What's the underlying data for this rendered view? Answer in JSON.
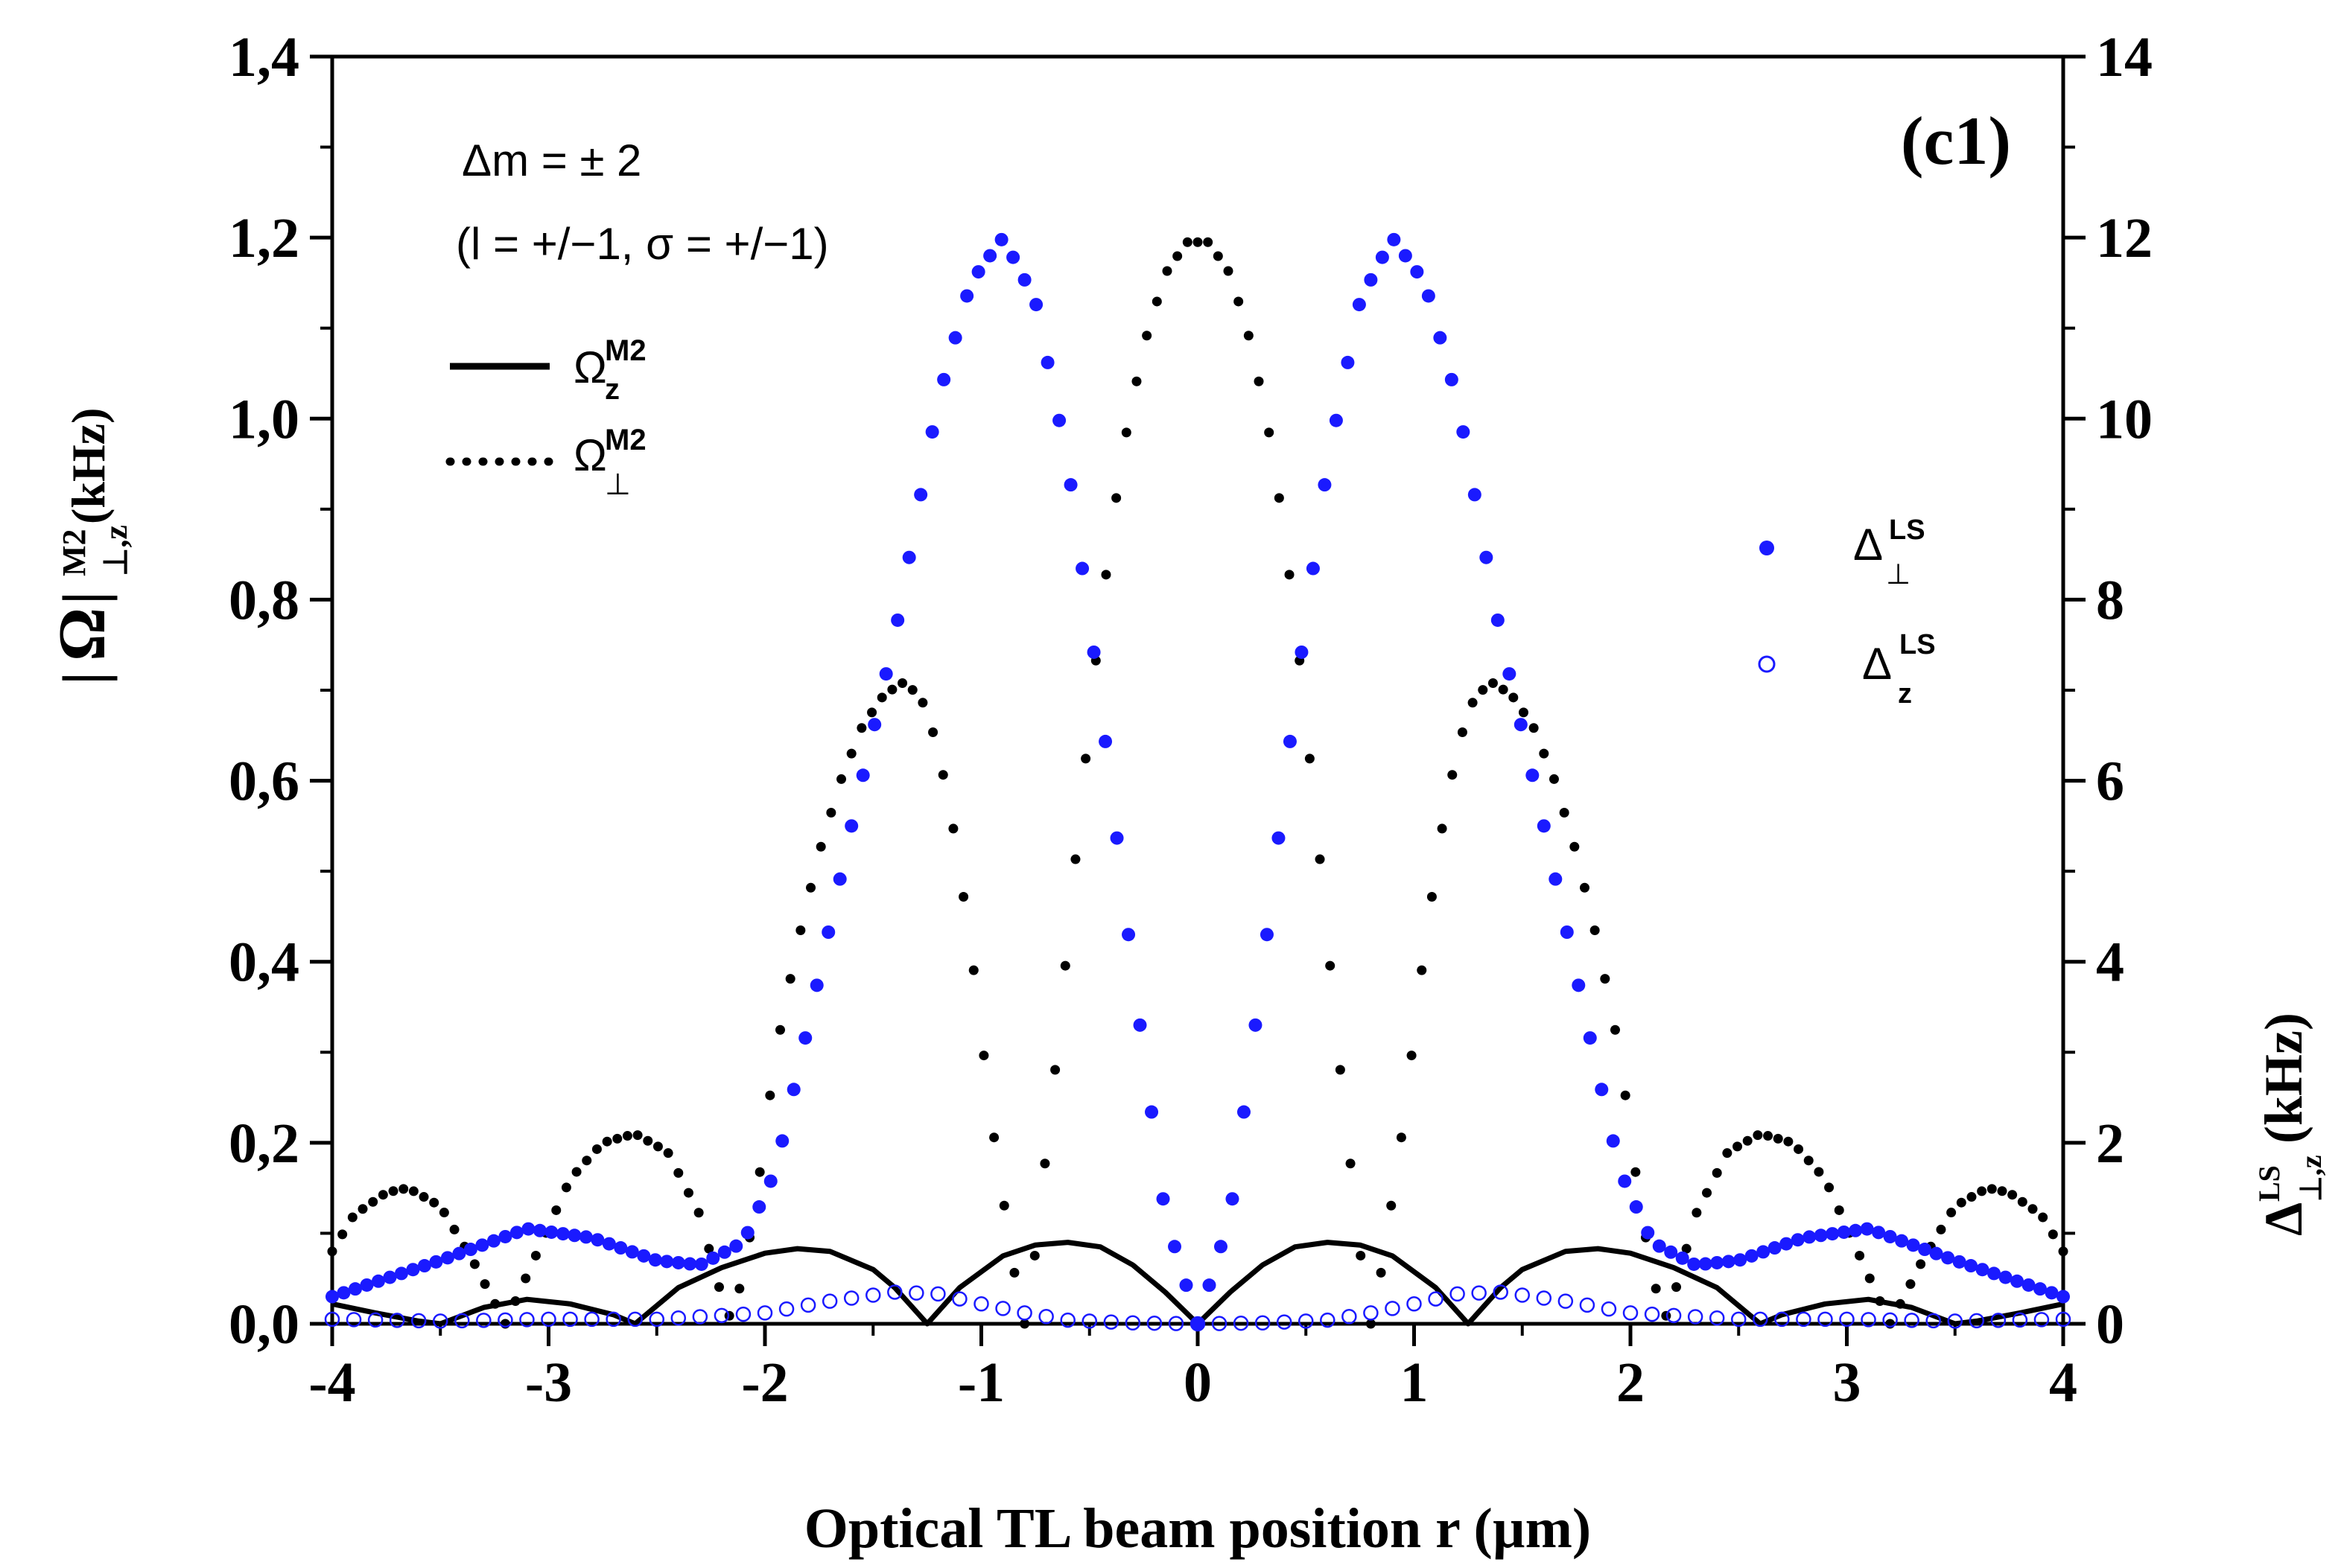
{
  "chart_data": {
    "type": "line",
    "panel_label": "(c1)",
    "annotation": {
      "line1": "Δm = ± 2",
      "line2": "(l = +/−1, σ = +/−1)"
    },
    "xlabel": "Optical TL beam position r (µm)",
    "ylabel_left": {
      "symbol": "Ω",
      "sup": "M2",
      "sub": "⊥,z",
      "unit": "(kHz)"
    },
    "ylabel_right": {
      "symbol": "Δ",
      "sup": "LS",
      "sub": "⊥,z",
      "unit": "(kHz)"
    },
    "xlim": [
      -4,
      4
    ],
    "ylim_left": [
      0,
      1.4
    ],
    "ylim_right": [
      0,
      14
    ],
    "x_ticks": [
      "-4",
      "-3",
      "-2",
      "-1",
      "0",
      "1",
      "2",
      "3",
      "4"
    ],
    "y_left_ticks": [
      "0,0",
      "0,2",
      "0,4",
      "0,6",
      "0,8",
      "1,0",
      "1,2",
      "1,4"
    ],
    "y_right_ticks": [
      "0",
      "2",
      "4",
      "6",
      "8",
      "10",
      "12",
      "14"
    ],
    "legend_left": [
      {
        "symbol": "Ω",
        "sup": "M2",
        "sub": "z",
        "style": "solid"
      },
      {
        "symbol": "Ω",
        "sup": "M2",
        "sub": "⊥",
        "style": "dotted"
      }
    ],
    "legend_right": [
      {
        "symbol": "Δ",
        "sup": "LS",
        "sub": "⊥",
        "style": "filled-circle"
      },
      {
        "symbol": "Δ",
        "sup": "LS",
        "sub": "z",
        "style": "open-circle"
      }
    ],
    "series": [
      {
        "id": "omega_z",
        "axis": "left",
        "style": "solid",
        "color": "#000000",
        "points": [
          [
            -4,
            0.022
          ],
          [
            -3.8,
            0.012
          ],
          [
            -3.6,
            0.003
          ],
          [
            -3.5,
            0.0
          ],
          [
            -3.3,
            0.018
          ],
          [
            -3.1,
            0.027
          ],
          [
            -2.9,
            0.022
          ],
          [
            -2.7,
            0.01
          ],
          [
            -2.6,
            0.0
          ],
          [
            -2.4,
            0.04
          ],
          [
            -2.2,
            0.062
          ],
          [
            -2.0,
            0.078
          ],
          [
            -1.85,
            0.083
          ],
          [
            -1.7,
            0.08
          ],
          [
            -1.5,
            0.06
          ],
          [
            -1.4,
            0.04
          ],
          [
            -1.25,
            0.0
          ],
          [
            -1.1,
            0.04
          ],
          [
            -0.9,
            0.075
          ],
          [
            -0.75,
            0.087
          ],
          [
            -0.6,
            0.09
          ],
          [
            -0.45,
            0.085
          ],
          [
            -0.3,
            0.065
          ],
          [
            -0.15,
            0.035
          ],
          [
            0,
            0.0
          ],
          [
            0.15,
            0.035
          ],
          [
            0.3,
            0.065
          ],
          [
            0.45,
            0.085
          ],
          [
            0.6,
            0.09
          ],
          [
            0.75,
            0.087
          ],
          [
            0.9,
            0.075
          ],
          [
            1.1,
            0.04
          ],
          [
            1.25,
            0.0
          ],
          [
            1.4,
            0.04
          ],
          [
            1.5,
            0.06
          ],
          [
            1.7,
            0.08
          ],
          [
            1.85,
            0.083
          ],
          [
            2.0,
            0.078
          ],
          [
            2.2,
            0.062
          ],
          [
            2.4,
            0.04
          ],
          [
            2.6,
            0.0
          ],
          [
            2.7,
            0.01
          ],
          [
            2.9,
            0.022
          ],
          [
            3.1,
            0.027
          ],
          [
            3.3,
            0.018
          ],
          [
            3.5,
            0.0
          ],
          [
            3.6,
            0.003
          ],
          [
            3.8,
            0.012
          ],
          [
            4,
            0.022
          ]
        ]
      },
      {
        "id": "omega_perp",
        "axis": "left",
        "style": "dotted",
        "color": "#000000",
        "points": [
          [
            -4,
            0.08
          ],
          [
            -3.9,
            0.12
          ],
          [
            -3.75,
            0.145
          ],
          [
            -3.65,
            0.15
          ],
          [
            -3.5,
            0.13
          ],
          [
            -3.35,
            0.07
          ],
          [
            -3.2,
            0.0
          ],
          [
            -3.05,
            0.08
          ],
          [
            -2.9,
            0.16
          ],
          [
            -2.75,
            0.2
          ],
          [
            -2.6,
            0.21
          ],
          [
            -2.45,
            0.19
          ],
          [
            -2.3,
            0.12
          ],
          [
            -2.2,
            0.03
          ],
          [
            -2.15,
            0.0
          ],
          [
            -2.05,
            0.12
          ],
          [
            -1.95,
            0.3
          ],
          [
            -1.85,
            0.42
          ],
          [
            -1.75,
            0.52
          ],
          [
            -1.65,
            0.6
          ],
          [
            -1.55,
            0.66
          ],
          [
            -1.45,
            0.695
          ],
          [
            -1.35,
            0.71
          ],
          [
            -1.25,
            0.68
          ],
          [
            -1.15,
            0.58
          ],
          [
            -1.05,
            0.42
          ],
          [
            -0.95,
            0.22
          ],
          [
            -0.85,
            0.06
          ],
          [
            -0.8,
            0.0
          ],
          [
            -0.75,
            0.08
          ],
          [
            -0.65,
            0.3
          ],
          [
            -0.55,
            0.55
          ],
          [
            -0.45,
            0.78
          ],
          [
            -0.35,
            0.96
          ],
          [
            -0.25,
            1.08
          ],
          [
            -0.15,
            1.16
          ],
          [
            -0.05,
            1.195
          ],
          [
            0.05,
            1.195
          ],
          [
            0.15,
            1.16
          ],
          [
            0.25,
            1.08
          ],
          [
            0.35,
            0.96
          ],
          [
            0.45,
            0.78
          ],
          [
            0.55,
            0.55
          ],
          [
            0.65,
            0.3
          ],
          [
            0.75,
            0.08
          ],
          [
            0.8,
            0.0
          ],
          [
            0.85,
            0.06
          ],
          [
            0.95,
            0.22
          ],
          [
            1.05,
            0.42
          ],
          [
            1.15,
            0.58
          ],
          [
            1.25,
            0.68
          ],
          [
            1.35,
            0.71
          ],
          [
            1.45,
            0.695
          ],
          [
            1.55,
            0.66
          ],
          [
            1.65,
            0.6
          ],
          [
            1.75,
            0.52
          ],
          [
            1.85,
            0.42
          ],
          [
            1.95,
            0.3
          ],
          [
            2.05,
            0.12
          ],
          [
            2.15,
            0.0
          ],
          [
            2.2,
            0.03
          ],
          [
            2.3,
            0.12
          ],
          [
            2.45,
            0.19
          ],
          [
            2.6,
            0.21
          ],
          [
            2.75,
            0.2
          ],
          [
            2.9,
            0.16
          ],
          [
            3.05,
            0.08
          ],
          [
            3.2,
            0.0
          ],
          [
            3.35,
            0.07
          ],
          [
            3.5,
            0.13
          ],
          [
            3.65,
            0.15
          ],
          [
            3.75,
            0.145
          ],
          [
            3.9,
            0.12
          ],
          [
            4,
            0.08
          ]
        ]
      },
      {
        "id": "delta_perp",
        "axis": "right",
        "style": "filled-circle",
        "color": "#1a1aff",
        "points": [
          [
            -4,
            0.3
          ],
          [
            -3.5,
            0.7
          ],
          [
            -3.1,
            1.05
          ],
          [
            -2.8,
            0.95
          ],
          [
            -2.5,
            0.7
          ],
          [
            -2.3,
            0.65
          ],
          [
            -2.1,
            0.9
          ],
          [
            -1.95,
            1.7
          ],
          [
            -1.8,
            3.3
          ],
          [
            -1.6,
            5.5
          ],
          [
            -1.4,
            7.6
          ],
          [
            -1.2,
            10.2
          ],
          [
            -1.05,
            11.5
          ],
          [
            -0.9,
            12.0
          ],
          [
            -0.75,
            11.3
          ],
          [
            -0.6,
            9.5
          ],
          [
            -0.45,
            6.9
          ],
          [
            -0.3,
            3.9
          ],
          [
            -0.15,
            1.2
          ],
          [
            0,
            0.0
          ],
          [
            0.15,
            1.2
          ],
          [
            0.3,
            3.9
          ],
          [
            0.45,
            6.9
          ],
          [
            0.6,
            9.5
          ],
          [
            0.75,
            11.3
          ],
          [
            0.9,
            12.0
          ],
          [
            1.05,
            11.5
          ],
          [
            1.2,
            10.2
          ],
          [
            1.4,
            7.6
          ],
          [
            1.6,
            5.5
          ],
          [
            1.8,
            3.3
          ],
          [
            1.95,
            1.7
          ],
          [
            2.1,
            0.9
          ],
          [
            2.3,
            0.65
          ],
          [
            2.5,
            0.7
          ],
          [
            2.8,
            0.95
          ],
          [
            3.1,
            1.05
          ],
          [
            3.5,
            0.7
          ],
          [
            4,
            0.3
          ]
        ]
      },
      {
        "id": "delta_z",
        "axis": "right",
        "style": "open-circle",
        "color": "#1a1aff",
        "points": [
          [
            -4,
            0.05
          ],
          [
            -3.5,
            0.03
          ],
          [
            -3.0,
            0.05
          ],
          [
            -2.5,
            0.05
          ],
          [
            -2.0,
            0.12
          ],
          [
            -1.7,
            0.25
          ],
          [
            -1.4,
            0.35
          ],
          [
            -1.2,
            0.33
          ],
          [
            -1.0,
            0.22
          ],
          [
            -0.8,
            0.12
          ],
          [
            -0.6,
            0.04
          ],
          [
            -0.3,
            0.01
          ],
          [
            0,
            0.0
          ],
          [
            0.3,
            0.01
          ],
          [
            0.6,
            0.04
          ],
          [
            0.8,
            0.12
          ],
          [
            1.0,
            0.22
          ],
          [
            1.2,
            0.33
          ],
          [
            1.4,
            0.35
          ],
          [
            1.7,
            0.25
          ],
          [
            2.0,
            0.12
          ],
          [
            2.5,
            0.05
          ],
          [
            3.0,
            0.05
          ],
          [
            3.5,
            0.03
          ],
          [
            4,
            0.05
          ]
        ]
      }
    ]
  }
}
